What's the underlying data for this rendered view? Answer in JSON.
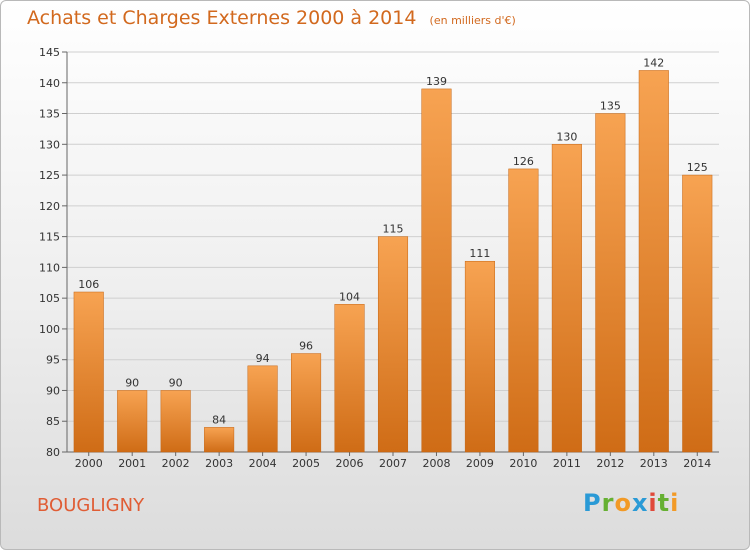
{
  "title": "Achats et Charges Externes 2000 à 2014",
  "unit": "(en milliers d'€)",
  "place": "BOUGLIGNY",
  "logo": {
    "text": "Proxiti",
    "letters": [
      {
        "ch": "P",
        "color": "#2a9ad6"
      },
      {
        "ch": "r",
        "color": "#66b032"
      },
      {
        "ch": "o",
        "color": "#f29a26"
      },
      {
        "ch": "x",
        "color": "#2a9ad6"
      },
      {
        "ch": "i",
        "color": "#e0483a"
      },
      {
        "ch": "t",
        "color": "#66b032"
      },
      {
        "ch": "i",
        "color": "#f29a26"
      }
    ]
  },
  "colors": {
    "title": "#d2691e",
    "place": "#e05d35",
    "bar_top": "#f7a352",
    "bar_bottom": "#cf6c16",
    "grid": "#cfcfcf"
  },
  "chart_data": {
    "type": "bar",
    "categories": [
      "2000",
      "2001",
      "2002",
      "2003",
      "2004",
      "2005",
      "2006",
      "2007",
      "2008",
      "2009",
      "2010",
      "2011",
      "2012",
      "2013",
      "2014"
    ],
    "values": [
      106,
      90,
      90,
      84,
      94,
      96,
      104,
      115,
      139,
      111,
      126,
      130,
      135,
      142,
      125
    ],
    "ylim": [
      80,
      145
    ],
    "yticks": [
      80,
      85,
      90,
      95,
      100,
      105,
      110,
      115,
      120,
      125,
      130,
      135,
      140,
      145
    ],
    "grid": true,
    "xlabel": "",
    "ylabel": ""
  }
}
